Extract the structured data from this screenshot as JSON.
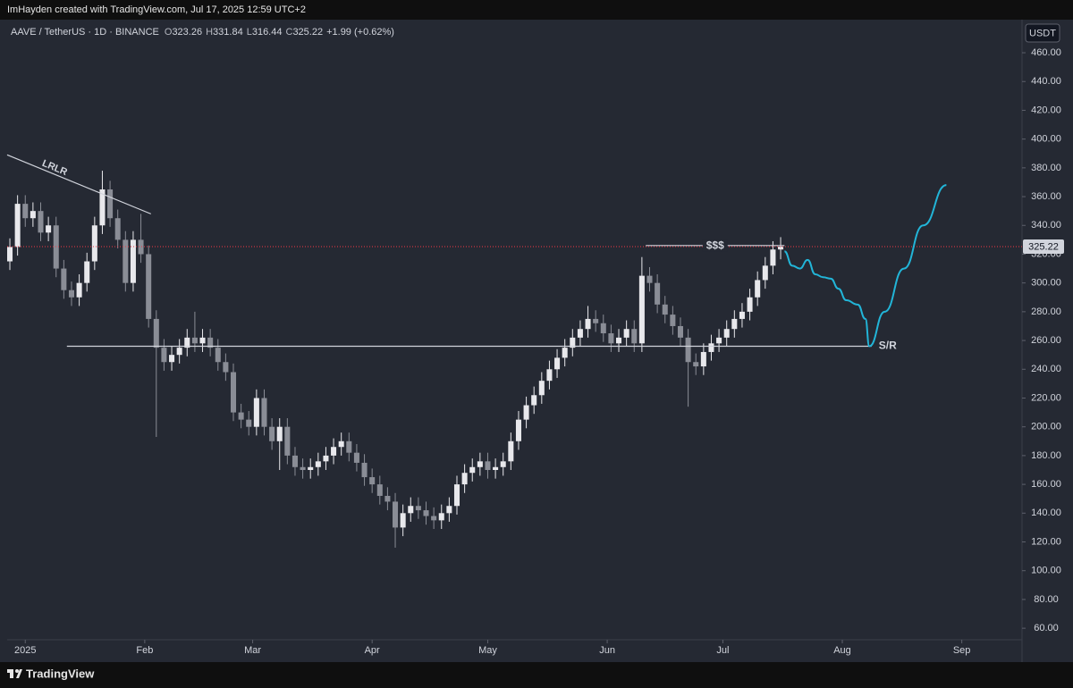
{
  "page": {
    "header": "ImHayden created with TradingView.com, Jul 17, 2025 12:59 UTC+2",
    "symbol": "AAVE / TetherUS · 1D · BINANCE",
    "ohlc": [
      {
        "key": "O",
        "value": "323.26"
      },
      {
        "key": "H",
        "value": "331.84"
      },
      {
        "key": "L",
        "value": "316.44"
      },
      {
        "key": "C",
        "value": "325.22"
      }
    ],
    "change": "+1.99 (+0.62%)",
    "currency": "USDT",
    "brand": "TradingView"
  },
  "chart_data": {
    "type": "candlestick",
    "up_color": "#e8e8ec",
    "down_color": "#8a8d96",
    "last_price": 325.22,
    "last_price_color": "#f23645",
    "xlim": [
      -4.7,
      258.4
    ],
    "ylim": [
      52,
      483
    ],
    "xticks": [
      {
        "value": 0,
        "label": "2025"
      },
      {
        "value": 31,
        "label": "Feb"
      },
      {
        "value": 59,
        "label": "Mar"
      },
      {
        "value": 90,
        "label": "Apr"
      },
      {
        "value": 120,
        "label": "May"
      },
      {
        "value": 151,
        "label": "Jun"
      },
      {
        "value": 181,
        "label": "Jul"
      },
      {
        "value": 212,
        "label": "Aug"
      },
      {
        "value": 243,
        "label": "Sep"
      }
    ],
    "yticks": [
      {
        "value": 60,
        "label": "60.00"
      },
      {
        "value": 80,
        "label": "80.00"
      },
      {
        "value": 100,
        "label": "100.00"
      },
      {
        "value": 120,
        "label": "120.00"
      },
      {
        "value": 140,
        "label": "140.00"
      },
      {
        "value": 160,
        "label": "160.00"
      },
      {
        "value": 180,
        "label": "180.00"
      },
      {
        "value": 200,
        "label": "200.00"
      },
      {
        "value": 220,
        "label": "220.00"
      },
      {
        "value": 240,
        "label": "240.00"
      },
      {
        "value": 260,
        "label": "260.00"
      },
      {
        "value": 280,
        "label": "280.00"
      },
      {
        "value": 300,
        "label": "300.00"
      },
      {
        "value": 320,
        "label": "320.00"
      },
      {
        "value": 340,
        "label": "340.00"
      },
      {
        "value": 360,
        "label": "360.00"
      },
      {
        "value": 380,
        "label": "380.00"
      },
      {
        "value": 400,
        "label": "400.00"
      },
      {
        "value": 420,
        "label": "420.00"
      },
      {
        "value": 440,
        "label": "440.00"
      },
      {
        "value": 460,
        "label": "460.00"
      }
    ],
    "grid": false,
    "x": [
      -4,
      -2,
      0,
      2,
      4,
      6,
      8,
      10,
      12,
      14,
      16,
      18,
      20,
      22,
      24,
      26,
      28,
      30,
      32,
      34,
      36,
      38,
      40,
      42,
      44,
      46,
      48,
      50,
      52,
      54,
      56,
      58,
      60,
      62,
      64,
      66,
      68,
      70,
      72,
      74,
      76,
      78,
      80,
      82,
      84,
      86,
      88,
      90,
      92,
      94,
      96,
      98,
      100,
      102,
      104,
      106,
      108,
      110,
      112,
      114,
      116,
      118,
      120,
      122,
      124,
      126,
      128,
      130,
      132,
      134,
      136,
      138,
      140,
      142,
      144,
      146,
      148,
      150,
      152,
      154,
      156,
      158,
      160,
      162,
      164,
      166,
      168,
      170,
      172,
      174,
      176,
      178,
      180,
      182,
      184,
      186,
      188,
      190,
      192,
      194,
      196
    ],
    "open": [
      315,
      325,
      355,
      345,
      350,
      335,
      340,
      310,
      295,
      290,
      300,
      315,
      340,
      365,
      345,
      330,
      300,
      330,
      320,
      275,
      255,
      245,
      250,
      255,
      262,
      258,
      262,
      255,
      245,
      238,
      210,
      205,
      200,
      220,
      200,
      190,
      200,
      180,
      172,
      170,
      172,
      176,
      180,
      186,
      190,
      182,
      175,
      165,
      160,
      152,
      148,
      130,
      140,
      145,
      142,
      138,
      135,
      140,
      145,
      160,
      168,
      172,
      176,
      170,
      172,
      176,
      190,
      205,
      215,
      222,
      232,
      240,
      248,
      255,
      262,
      268,
      275,
      272,
      265,
      258,
      262,
      268,
      258,
      305,
      300,
      285,
      278,
      270,
      262,
      245,
      242,
      252,
      258,
      262,
      268,
      275,
      280,
      290,
      302,
      312,
      323.26
    ],
    "high": [
      331,
      361,
      361,
      356,
      356,
      346,
      346,
      316,
      301,
      306,
      321,
      346,
      378,
      371,
      351,
      336,
      336,
      348,
      326,
      281,
      261,
      256,
      261,
      268,
      280,
      268,
      268,
      261,
      251,
      244,
      216,
      211,
      226,
      226,
      206,
      206,
      206,
      186,
      178,
      178,
      182,
      186,
      192,
      196,
      196,
      188,
      181,
      171,
      166,
      158,
      154,
      146,
      151,
      151,
      148,
      144,
      146,
      151,
      166,
      174,
      178,
      182,
      182,
      178,
      182,
      196,
      211,
      221,
      228,
      238,
      246,
      254,
      261,
      268,
      274,
      284,
      281,
      278,
      271,
      268,
      274,
      274,
      318,
      311,
      306,
      291,
      284,
      276,
      268,
      251,
      258,
      264,
      268,
      274,
      281,
      286,
      296,
      308,
      318,
      329,
      331.84
    ],
    "low": [
      309,
      319,
      339,
      339,
      329,
      329,
      304,
      289,
      284,
      284,
      294,
      309,
      334,
      339,
      324,
      294,
      294,
      314,
      269,
      193,
      239,
      239,
      244,
      249,
      252,
      252,
      249,
      239,
      232,
      204,
      199,
      194,
      194,
      194,
      184,
      170,
      174,
      166,
      164,
      164,
      166,
      170,
      174,
      180,
      176,
      169,
      159,
      154,
      146,
      142,
      116,
      124,
      134,
      136,
      132,
      129,
      129,
      134,
      139,
      154,
      162,
      166,
      164,
      164,
      166,
      170,
      184,
      199,
      209,
      216,
      226,
      234,
      242,
      249,
      256,
      262,
      266,
      259,
      252,
      252,
      256,
      252,
      252,
      294,
      279,
      272,
      264,
      256,
      214,
      236,
      236,
      246,
      252,
      256,
      262,
      269,
      274,
      284,
      296,
      306,
      316.44
    ],
    "close": [
      325,
      355,
      345,
      350,
      335,
      340,
      310,
      295,
      290,
      300,
      315,
      340,
      365,
      345,
      330,
      300,
      330,
      320,
      275,
      255,
      245,
      250,
      255,
      262,
      258,
      262,
      255,
      245,
      238,
      210,
      205,
      200,
      220,
      200,
      190,
      200,
      180,
      172,
      170,
      172,
      176,
      180,
      186,
      190,
      182,
      175,
      165,
      160,
      152,
      148,
      130,
      140,
      145,
      142,
      138,
      135,
      140,
      145,
      160,
      168,
      172,
      176,
      170,
      172,
      176,
      190,
      205,
      215,
      222,
      232,
      240,
      248,
      255,
      262,
      268,
      275,
      272,
      265,
      258,
      262,
      268,
      258,
      305,
      300,
      285,
      278,
      270,
      262,
      245,
      242,
      252,
      258,
      262,
      268,
      275,
      280,
      290,
      302,
      312,
      323.23,
      325.22
    ],
    "lines": [
      {
        "name": "LRLR",
        "color": "#d1d4dc",
        "x": [
          -4.7,
          32.6
        ],
        "y": [
          389,
          348
        ]
      },
      {
        "name": "S/R",
        "color": "#d1d4dc",
        "x": [
          10.8,
          219.6
        ],
        "y": [
          256,
          256
        ]
      },
      {
        "name": "$$$",
        "color": "#d1d4dc",
        "x": [
          161,
          197
        ],
        "y": [
          326,
          326
        ]
      }
    ],
    "projection": {
      "color": "#22b5d8",
      "x": [
        197,
        199,
        201,
        203,
        205,
        207,
        209,
        211,
        213,
        216,
        218,
        219,
        223,
        228,
        233,
        239
      ],
      "y": [
        322,
        312,
        310,
        316,
        306,
        304,
        303,
        296,
        288,
        285,
        275,
        256,
        280,
        310,
        340,
        368
      ]
    }
  }
}
